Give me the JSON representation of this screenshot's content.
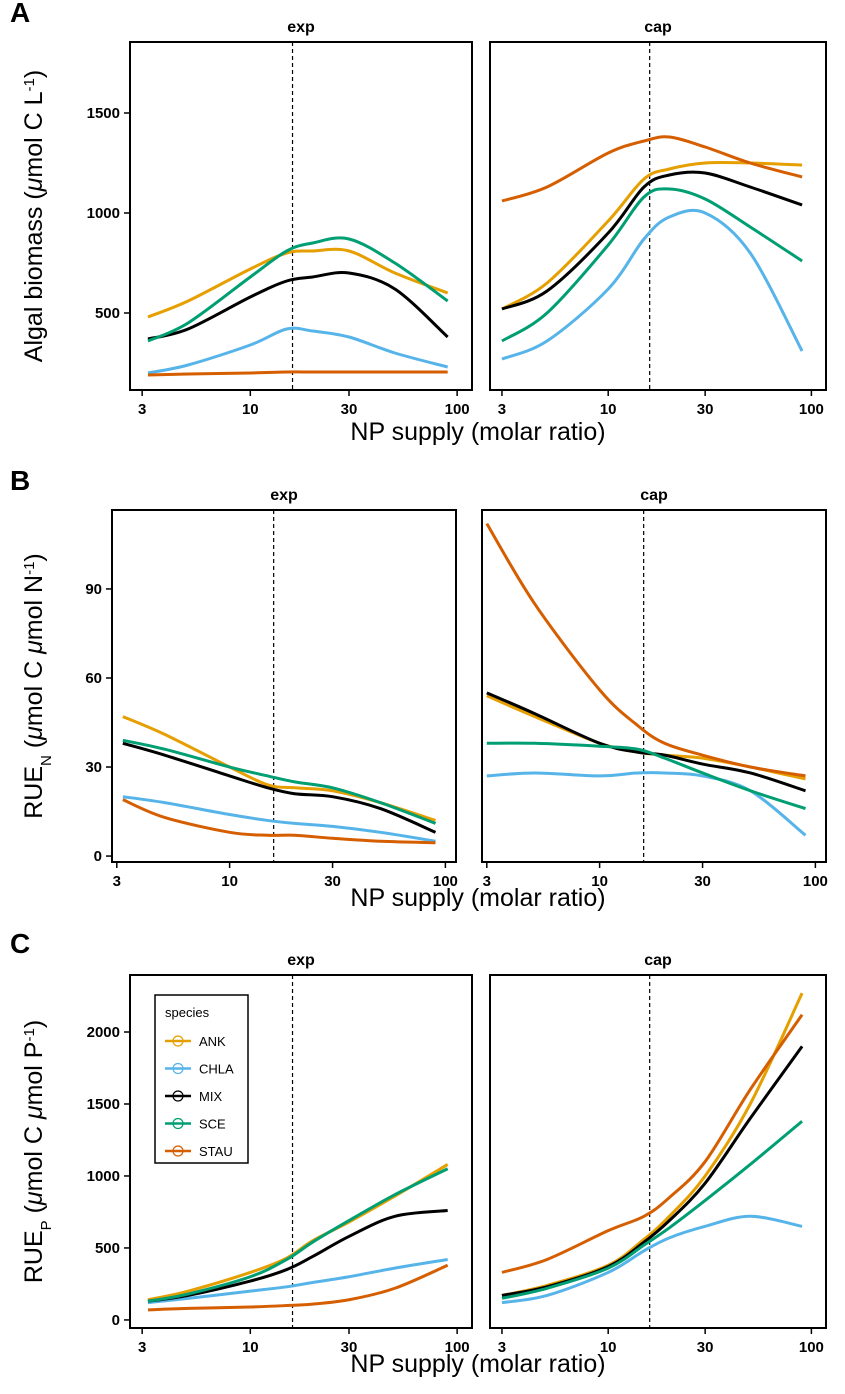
{
  "chart_data": [
    {
      "type": "line",
      "panel_label": "A",
      "title": "exp",
      "y_label": [
        {
          "text": "Algal biomass ("
        },
        {
          "text": "μ",
          "style": "italic"
        },
        {
          "text": "mol C L"
        },
        {
          "text": "-1",
          "shift": "sup"
        },
        {
          "text": ")"
        }
      ],
      "x_label": "NP supply (molar ratio)",
      "log_x": true,
      "xlim": [
        2.62,
        118
      ],
      "ylim": [
        115,
        1855
      ],
      "xticks": [
        3,
        10,
        30,
        100
      ],
      "yticks": [
        500,
        1000,
        1500
      ],
      "vline": 16,
      "x": [
        3.2,
        5,
        10,
        15,
        20,
        30,
        50,
        90
      ],
      "series": [
        {
          "name": "ANK",
          "color": "#e69f00",
          "values": [
            480,
            560,
            720,
            800,
            810,
            810,
            700,
            600
          ]
        },
        {
          "name": "CHLA",
          "color": "#56b4e9",
          "values": [
            200,
            240,
            340,
            420,
            410,
            380,
            300,
            230
          ]
        },
        {
          "name": "MIX",
          "color": "#000000",
          "values": [
            370,
            420,
            580,
            660,
            680,
            700,
            620,
            380
          ]
        },
        {
          "name": "SCE",
          "color": "#009e73",
          "values": [
            360,
            450,
            680,
            810,
            850,
            870,
            750,
            560
          ]
        },
        {
          "name": "STAU",
          "color": "#d55e00",
          "values": [
            190,
            195,
            200,
            205,
            205,
            205,
            205,
            205
          ]
        }
      ]
    },
    {
      "type": "line",
      "title": "cap",
      "log_x": true,
      "xlim": [
        2.62,
        118
      ],
      "ylim": [
        115,
        1855
      ],
      "xticks": [
        3,
        10,
        30,
        100
      ],
      "vline": 16,
      "x": [
        3,
        5,
        10,
        15,
        20,
        30,
        50,
        90
      ],
      "series": [
        {
          "name": "ANK",
          "color": "#e69f00",
          "values": [
            520,
            650,
            960,
            1170,
            1220,
            1250,
            1250,
            1240
          ]
        },
        {
          "name": "CHLA",
          "color": "#56b4e9",
          "values": [
            270,
            360,
            620,
            870,
            980,
            1000,
            800,
            310
          ]
        },
        {
          "name": "MIX",
          "color": "#000000",
          "values": [
            520,
            610,
            900,
            1130,
            1190,
            1200,
            1130,
            1040
          ]
        },
        {
          "name": "SCE",
          "color": "#009e73",
          "values": [
            360,
            500,
            840,
            1080,
            1120,
            1070,
            930,
            760
          ]
        },
        {
          "name": "STAU",
          "color": "#d55e00",
          "values": [
            1060,
            1130,
            1300,
            1360,
            1380,
            1330,
            1250,
            1180
          ]
        }
      ]
    },
    {
      "type": "line",
      "panel_label": "B",
      "title": "exp",
      "y_label": [
        {
          "text": "RUE"
        },
        {
          "text": "N",
          "shift": "sub"
        },
        {
          "text": " ("
        },
        {
          "text": "μ",
          "style": "italic"
        },
        {
          "text": "mol C "
        },
        {
          "text": "μ",
          "style": "italic"
        },
        {
          "text": "mol N"
        },
        {
          "text": "-1",
          "shift": "sup"
        },
        {
          "text": ")"
        }
      ],
      "x_label": "NP supply (molar ratio)",
      "log_x": true,
      "xlim": [
        2.85,
        112
      ],
      "ylim": [
        -2,
        116.6
      ],
      "xticks": [
        3,
        10,
        30,
        100
      ],
      "yticks": [
        0,
        30,
        60,
        90
      ],
      "vline": 16,
      "x": [
        3.2,
        5,
        10,
        15,
        20,
        30,
        50,
        90
      ],
      "series": [
        {
          "name": "ANK",
          "color": "#e69f00",
          "values": [
            47,
            41,
            30,
            24,
            23,
            22,
            18,
            12
          ]
        },
        {
          "name": "CHLA",
          "color": "#56b4e9",
          "values": [
            20,
            18,
            14,
            12,
            11,
            10,
            8,
            5
          ]
        },
        {
          "name": "MIX",
          "color": "#000000",
          "values": [
            38,
            34,
            27,
            23,
            21,
            20,
            16,
            8
          ]
        },
        {
          "name": "SCE",
          "color": "#009e73",
          "values": [
            39,
            36,
            30,
            27,
            25,
            23,
            18,
            11
          ]
        },
        {
          "name": "STAU",
          "color": "#d55e00",
          "values": [
            19,
            13,
            8,
            7,
            7,
            6,
            5,
            4.5
          ]
        }
      ]
    },
    {
      "type": "line",
      "title": "cap",
      "log_x": true,
      "xlim": [
        2.85,
        112
      ],
      "ylim": [
        -2,
        116.6
      ],
      "xticks": [
        3,
        10,
        30,
        100
      ],
      "vline": 16,
      "x": [
        3,
        5,
        10,
        15,
        20,
        30,
        50,
        90
      ],
      "series": [
        {
          "name": "ANK",
          "color": "#e69f00",
          "values": [
            54,
            47,
            38,
            35,
            34,
            33,
            30,
            26
          ]
        },
        {
          "name": "CHLA",
          "color": "#56b4e9",
          "values": [
            27,
            28,
            27,
            28,
            28,
            27,
            22,
            7
          ]
        },
        {
          "name": "MIX",
          "color": "#000000",
          "values": [
            55,
            48,
            38,
            35,
            34,
            31,
            28,
            22
          ]
        },
        {
          "name": "SCE",
          "color": "#009e73",
          "values": [
            38,
            38,
            37,
            36,
            33,
            28,
            22,
            16
          ]
        },
        {
          "name": "STAU",
          "color": "#d55e00",
          "values": [
            112,
            85,
            56,
            44,
            38,
            34,
            30,
            27
          ]
        }
      ]
    },
    {
      "type": "line",
      "panel_label": "C",
      "title": "exp",
      "y_label": [
        {
          "text": "RUE"
        },
        {
          "text": "P",
          "shift": "sub"
        },
        {
          "text": " ("
        },
        {
          "text": "μ",
          "style": "italic"
        },
        {
          "text": "mol C "
        },
        {
          "text": "μ",
          "style": "italic"
        },
        {
          "text": "mol P"
        },
        {
          "text": "-1",
          "shift": "sup"
        },
        {
          "text": ")"
        }
      ],
      "x_label": "NP supply (molar ratio)",
      "log_x": true,
      "xlim": [
        2.62,
        118
      ],
      "ylim": [
        -56,
        2396
      ],
      "xticks": [
        3,
        10,
        30,
        100
      ],
      "yticks": [
        0,
        500,
        1000,
        1500,
        2000
      ],
      "vline": 16,
      "legend_title": "species",
      "x": [
        3.2,
        5,
        10,
        15,
        20,
        30,
        50,
        90
      ],
      "series": [
        {
          "name": "ANK",
          "color": "#e69f00",
          "values": [
            140,
            200,
            330,
            430,
            550,
            680,
            860,
            1080
          ]
        },
        {
          "name": "CHLA",
          "color": "#56b4e9",
          "values": [
            120,
            150,
            200,
            230,
            260,
            300,
            360,
            420
          ]
        },
        {
          "name": "MIX",
          "color": "#000000",
          "values": [
            130,
            170,
            270,
            350,
            440,
            580,
            720,
            760
          ]
        },
        {
          "name": "SCE",
          "color": "#009e73",
          "values": [
            130,
            180,
            300,
            420,
            540,
            690,
            870,
            1050
          ]
        },
        {
          "name": "STAU",
          "color": "#d55e00",
          "values": [
            70,
            80,
            90,
            100,
            110,
            140,
            220,
            380
          ]
        }
      ]
    },
    {
      "type": "line",
      "title": "cap",
      "log_x": true,
      "xlim": [
        2.62,
        118
      ],
      "ylim": [
        -56,
        2396
      ],
      "xticks": [
        3,
        10,
        30,
        100
      ],
      "vline": 16,
      "x": [
        3,
        5,
        10,
        15,
        20,
        30,
        50,
        90
      ],
      "series": [
        {
          "name": "ANK",
          "color": "#e69f00",
          "values": [
            170,
            240,
            380,
            560,
            720,
            1000,
            1500,
            2270
          ]
        },
        {
          "name": "CHLA",
          "color": "#56b4e9",
          "values": [
            120,
            170,
            330,
            480,
            570,
            650,
            720,
            650
          ]
        },
        {
          "name": "MIX",
          "color": "#000000",
          "values": [
            170,
            230,
            370,
            540,
            690,
            950,
            1400,
            1900
          ]
        },
        {
          "name": "SCE",
          "color": "#009e73",
          "values": [
            150,
            220,
            360,
            520,
            640,
            830,
            1080,
            1380
          ]
        },
        {
          "name": "STAU",
          "color": "#d55e00",
          "values": [
            330,
            420,
            620,
            720,
            850,
            1100,
            1600,
            2120
          ]
        }
      ]
    }
  ]
}
